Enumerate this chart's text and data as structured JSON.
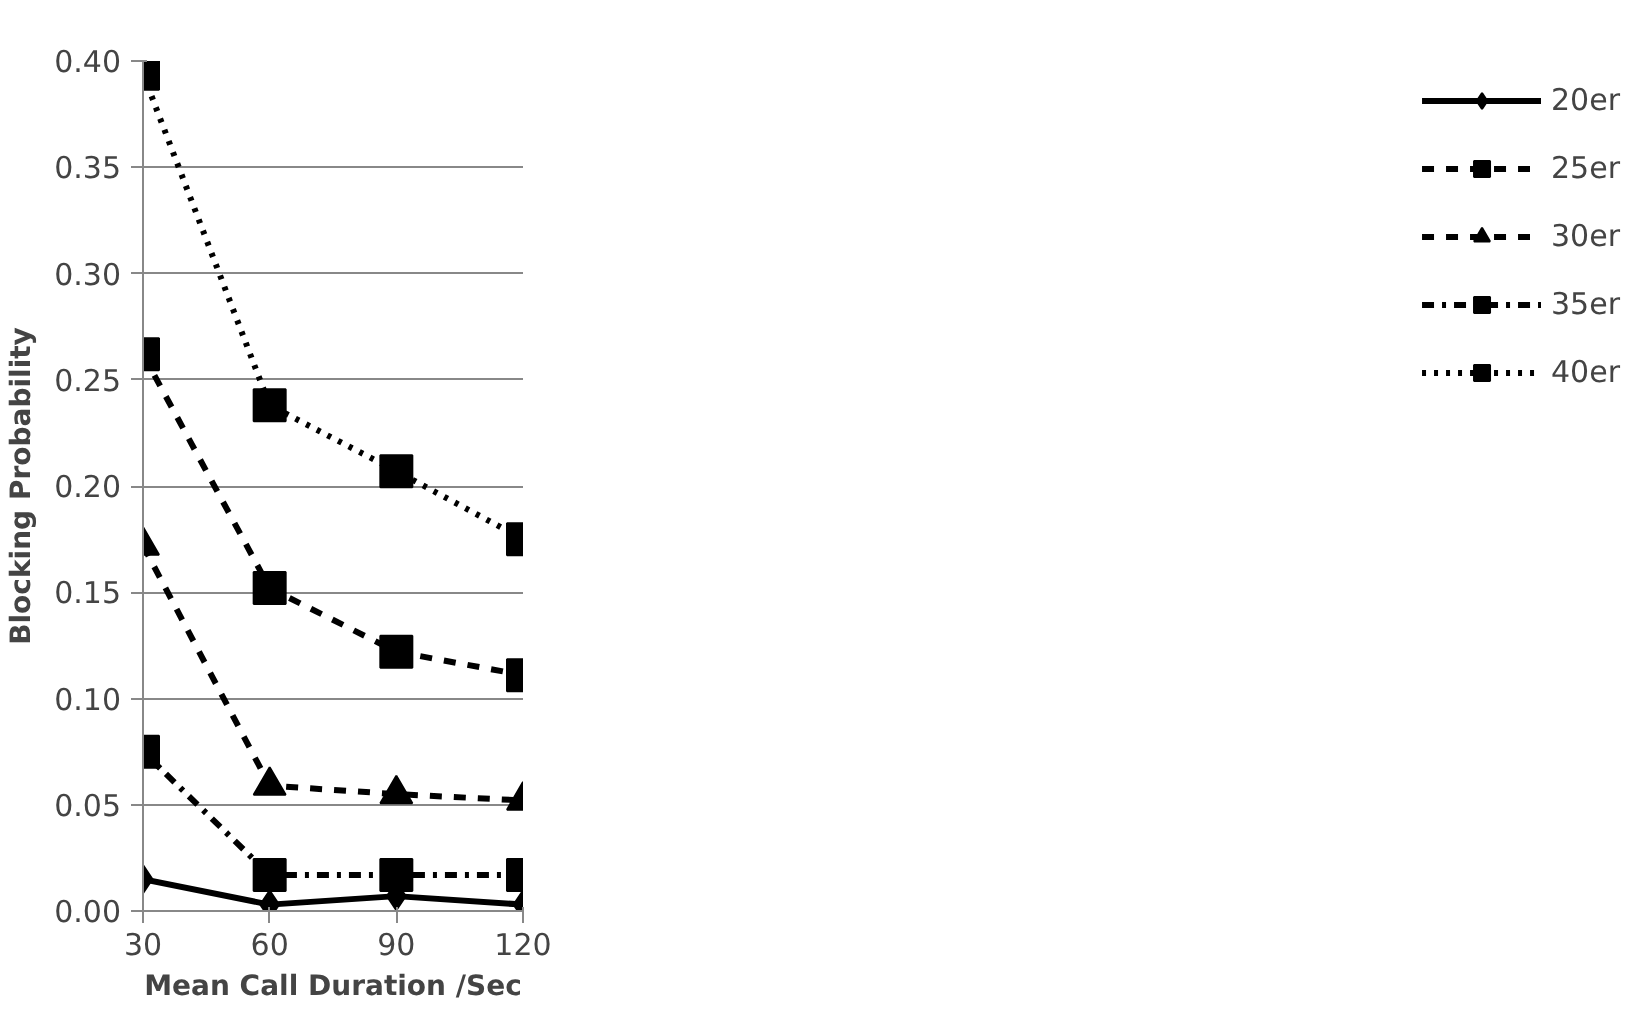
{
  "chart_data": {
    "type": "line",
    "xlabel": "Mean Call Duration /Sec",
    "ylabel": "Blocking Probability",
    "x": [
      30,
      60,
      90,
      120
    ],
    "xlim": [
      30,
      120
    ],
    "xticks": [
      30,
      60,
      90,
      120
    ],
    "ylim": [
      0,
      0.4
    ],
    "yticks": [
      {
        "value": 0,
        "label": "0.00"
      },
      {
        "value": 0.05,
        "label": "0.05"
      },
      {
        "value": 0.1,
        "label": "0.10"
      },
      {
        "value": 0.15,
        "label": "0.15"
      },
      {
        "value": 0.2,
        "label": "0.20"
      },
      {
        "value": 0.25,
        "label": "0.25"
      },
      {
        "value": 0.3,
        "label": "0.30"
      },
      {
        "value": 0.35,
        "label": "0.35"
      },
      {
        "value": 0.4,
        "label": "0.40"
      }
    ],
    "grid": "y",
    "legend": "right",
    "series": [
      {
        "name": "20er",
        "color": "#000000",
        "values": [
          0.015,
          0.003,
          0.007,
          0.003
        ],
        "marker": "diamond",
        "line_style": "solid"
      },
      {
        "name": "25er",
        "color": "#000000",
        "values": [
          0.262,
          0.152,
          0.122,
          0.111
        ],
        "marker": "square",
        "line_style": "dashed"
      },
      {
        "name": "30er",
        "color": "#000000",
        "values": [
          0.172,
          0.059,
          0.055,
          0.052
        ],
        "marker": "triangle",
        "line_style": "dashed"
      },
      {
        "name": "35er",
        "color": "#000000",
        "values": [
          0.075,
          0.017,
          0.017,
          0.017
        ],
        "marker": "square",
        "line_style": "dashdot"
      },
      {
        "name": "40er",
        "color": "#000000",
        "values": [
          0.394,
          0.238,
          0.207,
          0.175
        ],
        "marker": "square",
        "line_style": "dotted"
      }
    ]
  }
}
